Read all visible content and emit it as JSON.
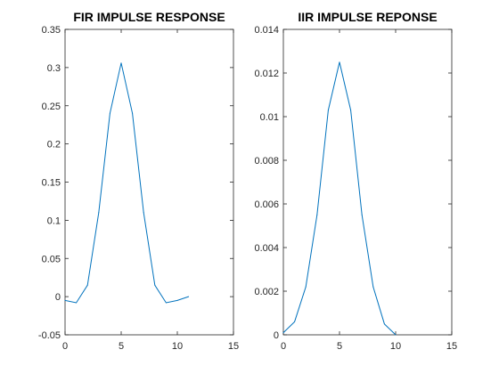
{
  "chart_data": [
    {
      "type": "line",
      "title": "FIR IMPULSE RESPONSE",
      "xlabel": "",
      "ylabel": "",
      "xlim": [
        0,
        15
      ],
      "ylim": [
        -0.05,
        0.35
      ],
      "xticks": [
        0,
        5,
        10,
        15
      ],
      "yticks": [
        -0.05,
        0,
        0.05,
        0.1,
        0.15,
        0.2,
        0.25,
        0.3,
        0.35
      ],
      "xtick_labels": [
        "0",
        "5",
        "10",
        "15"
      ],
      "ytick_labels": [
        "-0.05",
        "0",
        "0.05",
        "0.1",
        "0.15",
        "0.2",
        "0.25",
        "0.3",
        "0.35"
      ],
      "grid": false,
      "color": "#0072BD",
      "series": [
        {
          "x": [
            0,
            1,
            2,
            3,
            4,
            5,
            6,
            7,
            8,
            9,
            10,
            11
          ],
          "values": [
            -0.005,
            -0.008,
            0.015,
            0.11,
            0.24,
            0.306,
            0.24,
            0.11,
            0.015,
            -0.008,
            -0.005,
            0.0
          ]
        }
      ]
    },
    {
      "type": "line",
      "title": "IIR IMPULSE REPONSE",
      "xlabel": "",
      "ylabel": "",
      "xlim": [
        0,
        15
      ],
      "ylim": [
        0,
        0.014
      ],
      "xticks": [
        0,
        5,
        10,
        15
      ],
      "yticks": [
        0,
        0.002,
        0.004,
        0.006,
        0.008,
        0.01,
        0.012,
        0.014
      ],
      "xtick_labels": [
        "0",
        "5",
        "10",
        "15"
      ],
      "ytick_labels": [
        "0",
        "0.002",
        "0.004",
        "0.006",
        "0.008",
        "0.01",
        "0.012",
        "0.014"
      ],
      "grid": false,
      "color": "#0072BD",
      "series": [
        {
          "x": [
            0,
            1,
            2,
            3,
            4,
            5,
            6,
            7,
            8,
            9,
            10
          ],
          "values": [
            0.0001,
            0.0006,
            0.0022,
            0.0055,
            0.0103,
            0.0125,
            0.0103,
            0.0055,
            0.0022,
            0.0005,
            0.0
          ]
        }
      ]
    }
  ]
}
